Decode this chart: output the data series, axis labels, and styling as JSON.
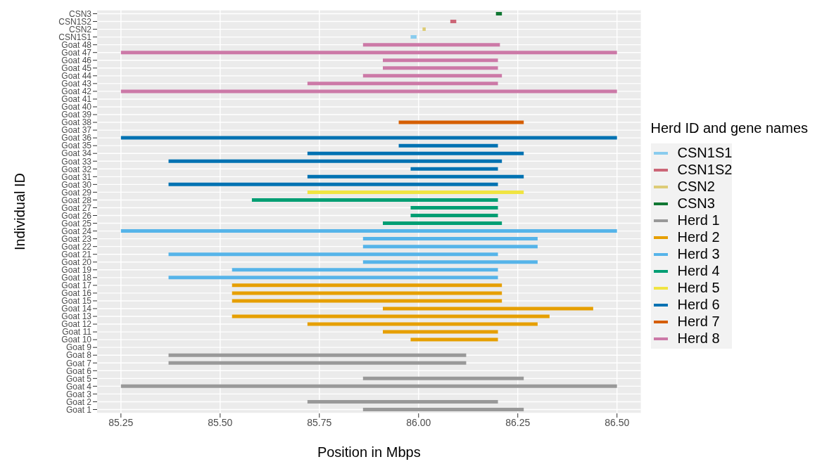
{
  "chart_data": {
    "type": "bar",
    "orientation": "horizontal",
    "xlabel": "Position in Mbps",
    "ylabel": "Individual ID",
    "legend_title": "Herd ID and gene names",
    "legend": "right",
    "grid": true,
    "categories": [
      "CSN3",
      "CSN1S2",
      "CSN2",
      "CSN1S1",
      "Goat  48",
      "Goat  47",
      "Goat  46",
      "Goat  45",
      "Goat  44",
      "Goat  43",
      "Goat  42",
      "Goat  41",
      "Goat  40",
      "Goat  39",
      "Goat  38",
      "Goat  37",
      "Goat  36",
      "Goat  35",
      "Goat  34",
      "Goat  33",
      "Goat  32",
      "Goat  31",
      "Goat  30",
      "Goat  29",
      "Goat  28",
      "Goat  27",
      "Goat  26",
      "Goat  25",
      "Goat  24",
      "Goat  23",
      "Goat  22",
      "Goat  21",
      "Goat  20",
      "Goat  19",
      "Goat  18",
      "Goat  17",
      "Goat  16",
      "Goat  15",
      "Goat  14",
      "Goat  13",
      "Goat  12",
      "Goat  11",
      "Goat  10",
      "Goat  9",
      "Goat  8",
      "Goat  7",
      "Goat  6",
      "Goat  5",
      "Goat  4",
      "Goat  3",
      "Goat  2",
      "Goat  1"
    ],
    "xlim": [
      85.19,
      86.56
    ],
    "xticks": [
      85.25,
      {
        "value": 85.5,
        "label": "85.50"
      },
      85.75,
      {
        "value": 86,
        "label": "86.00"
      },
      86.25,
      {
        "value": 86.5,
        "label": "86.50"
      }
    ],
    "series": [
      {
        "name": "CSN1S1",
        "color": "#89ccee",
        "base": [
          null,
          null,
          null,
          85.98,
          null,
          null,
          null,
          null,
          null,
          null,
          null,
          null,
          null,
          null,
          null,
          null,
          null,
          null,
          null,
          null,
          null,
          null,
          null,
          null,
          null,
          null,
          null,
          null,
          null,
          null,
          null,
          null,
          null,
          null,
          null,
          null,
          null,
          null,
          null,
          null,
          null,
          null,
          null,
          null,
          null,
          null,
          null,
          null,
          null,
          null,
          null,
          null
        ],
        "values": [
          null,
          null,
          null,
          0.015,
          null,
          null,
          null,
          null,
          null,
          null,
          null,
          null,
          null,
          null,
          null,
          null,
          null,
          null,
          null,
          null,
          null,
          null,
          null,
          null,
          null,
          null,
          null,
          null,
          null,
          null,
          null,
          null,
          null,
          null,
          null,
          null,
          null,
          null,
          null,
          null,
          null,
          null,
          null,
          null,
          null,
          null,
          null,
          null,
          null,
          null,
          null,
          null
        ]
      },
      {
        "name": "CSN1S2",
        "color": "#cc6677",
        "base": [
          null,
          86.08,
          null,
          null,
          null,
          null,
          null,
          null,
          null,
          null,
          null,
          null,
          null,
          null,
          null,
          null,
          null,
          null,
          null,
          null,
          null,
          null,
          null,
          null,
          null,
          null,
          null,
          null,
          null,
          null,
          null,
          null,
          null,
          null,
          null,
          null,
          null,
          null,
          null,
          null,
          null,
          null,
          null,
          null,
          null,
          null,
          null,
          null,
          null,
          null,
          null,
          null
        ],
        "values": [
          null,
          0.015,
          null,
          null,
          null,
          null,
          null,
          null,
          null,
          null,
          null,
          null,
          null,
          null,
          null,
          null,
          null,
          null,
          null,
          null,
          null,
          null,
          null,
          null,
          null,
          null,
          null,
          null,
          null,
          null,
          null,
          null,
          null,
          null,
          null,
          null,
          null,
          null,
          null,
          null,
          null,
          null,
          null,
          null,
          null,
          null,
          null,
          null,
          null,
          null,
          null,
          null
        ]
      },
      {
        "name": "CSN2",
        "color": "#ddcc77",
        "base": [
          null,
          null,
          86.01,
          null,
          null,
          null,
          null,
          null,
          null,
          null,
          null,
          null,
          null,
          null,
          null,
          null,
          null,
          null,
          null,
          null,
          null,
          null,
          null,
          null,
          null,
          null,
          null,
          null,
          null,
          null,
          null,
          null,
          null,
          null,
          null,
          null,
          null,
          null,
          null,
          null,
          null,
          null,
          null,
          null,
          null,
          null,
          null,
          null,
          null,
          null,
          null,
          null
        ],
        "values": [
          null,
          null,
          0.008,
          null,
          null,
          null,
          null,
          null,
          null,
          null,
          null,
          null,
          null,
          null,
          null,
          null,
          null,
          null,
          null,
          null,
          null,
          null,
          null,
          null,
          null,
          null,
          null,
          null,
          null,
          null,
          null,
          null,
          null,
          null,
          null,
          null,
          null,
          null,
          null,
          null,
          null,
          null,
          null,
          null,
          null,
          null,
          null,
          null,
          null,
          null,
          null,
          null
        ]
      },
      {
        "name": "CSN3",
        "color": "#117733",
        "base": [
          86.195,
          null,
          null,
          null,
          null,
          null,
          null,
          null,
          null,
          null,
          null,
          null,
          null,
          null,
          null,
          null,
          null,
          null,
          null,
          null,
          null,
          null,
          null,
          null,
          null,
          null,
          null,
          null,
          null,
          null,
          null,
          null,
          null,
          null,
          null,
          null,
          null,
          null,
          null,
          null,
          null,
          null,
          null,
          null,
          null,
          null,
          null,
          null,
          null,
          null,
          null,
          null
        ],
        "values": [
          0.015,
          null,
          null,
          null,
          null,
          null,
          null,
          null,
          null,
          null,
          null,
          null,
          null,
          null,
          null,
          null,
          null,
          null,
          null,
          null,
          null,
          null,
          null,
          null,
          null,
          null,
          null,
          null,
          null,
          null,
          null,
          null,
          null,
          null,
          null,
          null,
          null,
          null,
          null,
          null,
          null,
          null,
          null,
          null,
          null,
          null,
          null,
          null,
          null,
          null,
          null,
          null
        ]
      },
      {
        "name": "Herd 1",
        "color": "#999999",
        "base": [
          null,
          null,
          null,
          null,
          null,
          null,
          null,
          null,
          null,
          null,
          null,
          null,
          null,
          null,
          null,
          null,
          null,
          null,
          null,
          null,
          null,
          null,
          null,
          null,
          null,
          null,
          null,
          null,
          null,
          null,
          null,
          null,
          null,
          null,
          null,
          null,
          null,
          null,
          null,
          null,
          null,
          null,
          null,
          null,
          85.37,
          85.37,
          null,
          85.86,
          85.25,
          null,
          85.72,
          85.86
        ],
        "values": [
          null,
          null,
          null,
          null,
          null,
          null,
          null,
          null,
          null,
          null,
          null,
          null,
          null,
          null,
          null,
          null,
          null,
          null,
          null,
          null,
          null,
          null,
          null,
          null,
          null,
          null,
          null,
          null,
          null,
          null,
          null,
          null,
          null,
          null,
          null,
          null,
          null,
          null,
          null,
          null,
          null,
          null,
          null,
          null,
          0.75,
          0.75,
          null,
          0.405,
          1.25,
          null,
          0.48,
          0.405
        ]
      },
      {
        "name": "Herd 2",
        "color": "#e69f00",
        "base": [
          null,
          null,
          null,
          null,
          null,
          null,
          null,
          null,
          null,
          null,
          null,
          null,
          null,
          null,
          null,
          null,
          null,
          null,
          null,
          null,
          null,
          null,
          null,
          null,
          null,
          null,
          null,
          null,
          null,
          null,
          null,
          null,
          null,
          null,
          null,
          85.53,
          85.53,
          85.53,
          85.91,
          85.53,
          85.72,
          85.91,
          85.98,
          null,
          null,
          null,
          null,
          null,
          null,
          null,
          null,
          null
        ],
        "values": [
          null,
          null,
          null,
          null,
          null,
          null,
          null,
          null,
          null,
          null,
          null,
          null,
          null,
          null,
          null,
          null,
          null,
          null,
          null,
          null,
          null,
          null,
          null,
          null,
          null,
          null,
          null,
          null,
          null,
          null,
          null,
          null,
          null,
          null,
          null,
          0.68,
          0.68,
          0.68,
          0.53,
          0.8,
          0.58,
          0.29,
          0.22,
          null,
          null,
          null,
          null,
          null,
          null,
          null,
          null,
          null
        ]
      },
      {
        "name": "Herd 3",
        "color": "#56b4e9",
        "base": [
          null,
          null,
          null,
          null,
          null,
          null,
          null,
          null,
          null,
          null,
          null,
          null,
          null,
          null,
          null,
          null,
          null,
          null,
          null,
          null,
          null,
          null,
          null,
          null,
          null,
          null,
          null,
          null,
          85.25,
          85.86,
          85.86,
          85.37,
          85.86,
          85.53,
          85.37,
          null,
          null,
          null,
          null,
          null,
          null,
          null,
          null,
          null,
          null,
          null,
          null,
          null,
          null,
          null,
          null,
          null
        ],
        "values": [
          null,
          null,
          null,
          null,
          null,
          null,
          null,
          null,
          null,
          null,
          null,
          null,
          null,
          null,
          null,
          null,
          null,
          null,
          null,
          null,
          null,
          null,
          null,
          null,
          null,
          null,
          null,
          null,
          1.25,
          0.44,
          0.44,
          0.83,
          0.44,
          0.67,
          0.83,
          null,
          null,
          null,
          null,
          null,
          null,
          null,
          null,
          null,
          null,
          null,
          null,
          null,
          null,
          null,
          null,
          null
        ]
      },
      {
        "name": "Herd 4",
        "color": "#009e73",
        "base": [
          null,
          null,
          null,
          null,
          null,
          null,
          null,
          null,
          null,
          null,
          null,
          null,
          null,
          null,
          null,
          null,
          null,
          null,
          null,
          null,
          null,
          null,
          null,
          null,
          85.58,
          85.98,
          85.98,
          85.91,
          null,
          null,
          null,
          null,
          null,
          null,
          null,
          null,
          null,
          null,
          null,
          null,
          null,
          null,
          null,
          null,
          null,
          null,
          null,
          null,
          null,
          null,
          null,
          null
        ],
        "values": [
          null,
          null,
          null,
          null,
          null,
          null,
          null,
          null,
          null,
          null,
          null,
          null,
          null,
          null,
          null,
          null,
          null,
          null,
          null,
          null,
          null,
          null,
          null,
          null,
          0.62,
          0.22,
          0.22,
          0.3,
          null,
          null,
          null,
          null,
          null,
          null,
          null,
          null,
          null,
          null,
          null,
          null,
          null,
          null,
          null,
          null,
          null,
          null,
          null,
          null,
          null,
          null,
          null,
          null
        ]
      },
      {
        "name": "Herd 5",
        "color": "#f0e442",
        "base": [
          null,
          null,
          null,
          null,
          null,
          null,
          null,
          null,
          null,
          null,
          null,
          null,
          null,
          null,
          null,
          null,
          null,
          null,
          null,
          null,
          null,
          null,
          null,
          85.72,
          null,
          null,
          null,
          null,
          null,
          null,
          null,
          null,
          null,
          null,
          null,
          null,
          null,
          null,
          null,
          null,
          null,
          null,
          null,
          null,
          null,
          null,
          null,
          null,
          null,
          null,
          null,
          null
        ],
        "values": [
          null,
          null,
          null,
          null,
          null,
          null,
          null,
          null,
          null,
          null,
          null,
          null,
          null,
          null,
          null,
          null,
          null,
          null,
          null,
          null,
          null,
          null,
          null,
          0.545,
          null,
          null,
          null,
          null,
          null,
          null,
          null,
          null,
          null,
          null,
          null,
          null,
          null,
          null,
          null,
          null,
          null,
          null,
          null,
          null,
          null,
          null,
          null,
          null,
          null,
          null,
          null,
          null
        ]
      },
      {
        "name": "Herd 6",
        "color": "#0072b2",
        "base": [
          null,
          null,
          null,
          null,
          null,
          null,
          null,
          null,
          null,
          null,
          null,
          null,
          null,
          null,
          null,
          null,
          85.25,
          85.95,
          85.72,
          85.37,
          85.98,
          85.72,
          85.37,
          null,
          null,
          null,
          null,
          null,
          null,
          null,
          null,
          null,
          null,
          null,
          null,
          null,
          null,
          null,
          null,
          null,
          null,
          null,
          null,
          null,
          null,
          null,
          null,
          null,
          null,
          null,
          null,
          null
        ],
        "values": [
          null,
          null,
          null,
          null,
          null,
          null,
          null,
          null,
          null,
          null,
          null,
          null,
          null,
          null,
          null,
          null,
          1.25,
          0.25,
          0.545,
          0.84,
          0.22,
          0.545,
          0.83,
          null,
          null,
          null,
          null,
          null,
          null,
          null,
          null,
          null,
          null,
          null,
          null,
          null,
          null,
          null,
          null,
          null,
          null,
          null,
          null,
          null,
          null,
          null,
          null,
          null,
          null,
          null,
          null,
          null
        ]
      },
      {
        "name": "Herd 7",
        "color": "#d55e00",
        "base": [
          null,
          null,
          null,
          null,
          null,
          null,
          null,
          null,
          null,
          null,
          null,
          null,
          null,
          null,
          85.95,
          null,
          null,
          null,
          null,
          null,
          null,
          null,
          null,
          null,
          null,
          null,
          null,
          null,
          null,
          null,
          null,
          null,
          null,
          null,
          null,
          null,
          null,
          null,
          null,
          null,
          null,
          null,
          null,
          null,
          null,
          null,
          null,
          null,
          null,
          null,
          null,
          null
        ],
        "values": [
          null,
          null,
          null,
          null,
          null,
          null,
          null,
          null,
          null,
          null,
          null,
          null,
          null,
          null,
          0.315,
          null,
          null,
          null,
          null,
          null,
          null,
          null,
          null,
          null,
          null,
          null,
          null,
          null,
          null,
          null,
          null,
          null,
          null,
          null,
          null,
          null,
          null,
          null,
          null,
          null,
          null,
          null,
          null,
          null,
          null,
          null,
          null,
          null,
          null,
          null,
          null,
          null
        ]
      },
      {
        "name": "Herd 8",
        "color": "#cc79a7",
        "base": [
          null,
          null,
          null,
          null,
          85.86,
          85.25,
          85.91,
          85.91,
          85.86,
          85.72,
          85.25,
          null,
          null,
          null,
          null,
          null,
          null,
          null,
          null,
          null,
          null,
          null,
          null,
          null,
          null,
          null,
          null,
          null,
          null,
          null,
          null,
          null,
          null,
          null,
          null,
          null,
          null,
          null,
          null,
          null,
          null,
          null,
          null,
          null,
          null,
          null,
          null,
          null,
          null,
          null,
          null,
          null
        ],
        "values": [
          null,
          null,
          null,
          null,
          0.345,
          1.25,
          0.29,
          0.29,
          0.35,
          0.48,
          1.25,
          null,
          null,
          null,
          null,
          null,
          null,
          null,
          null,
          null,
          null,
          null,
          null,
          null,
          null,
          null,
          null,
          null,
          null,
          null,
          null,
          null,
          null,
          null,
          null,
          null,
          null,
          null,
          null,
          null,
          null,
          null,
          null,
          null,
          null,
          null,
          null,
          null,
          null,
          null,
          null,
          null
        ]
      }
    ]
  }
}
